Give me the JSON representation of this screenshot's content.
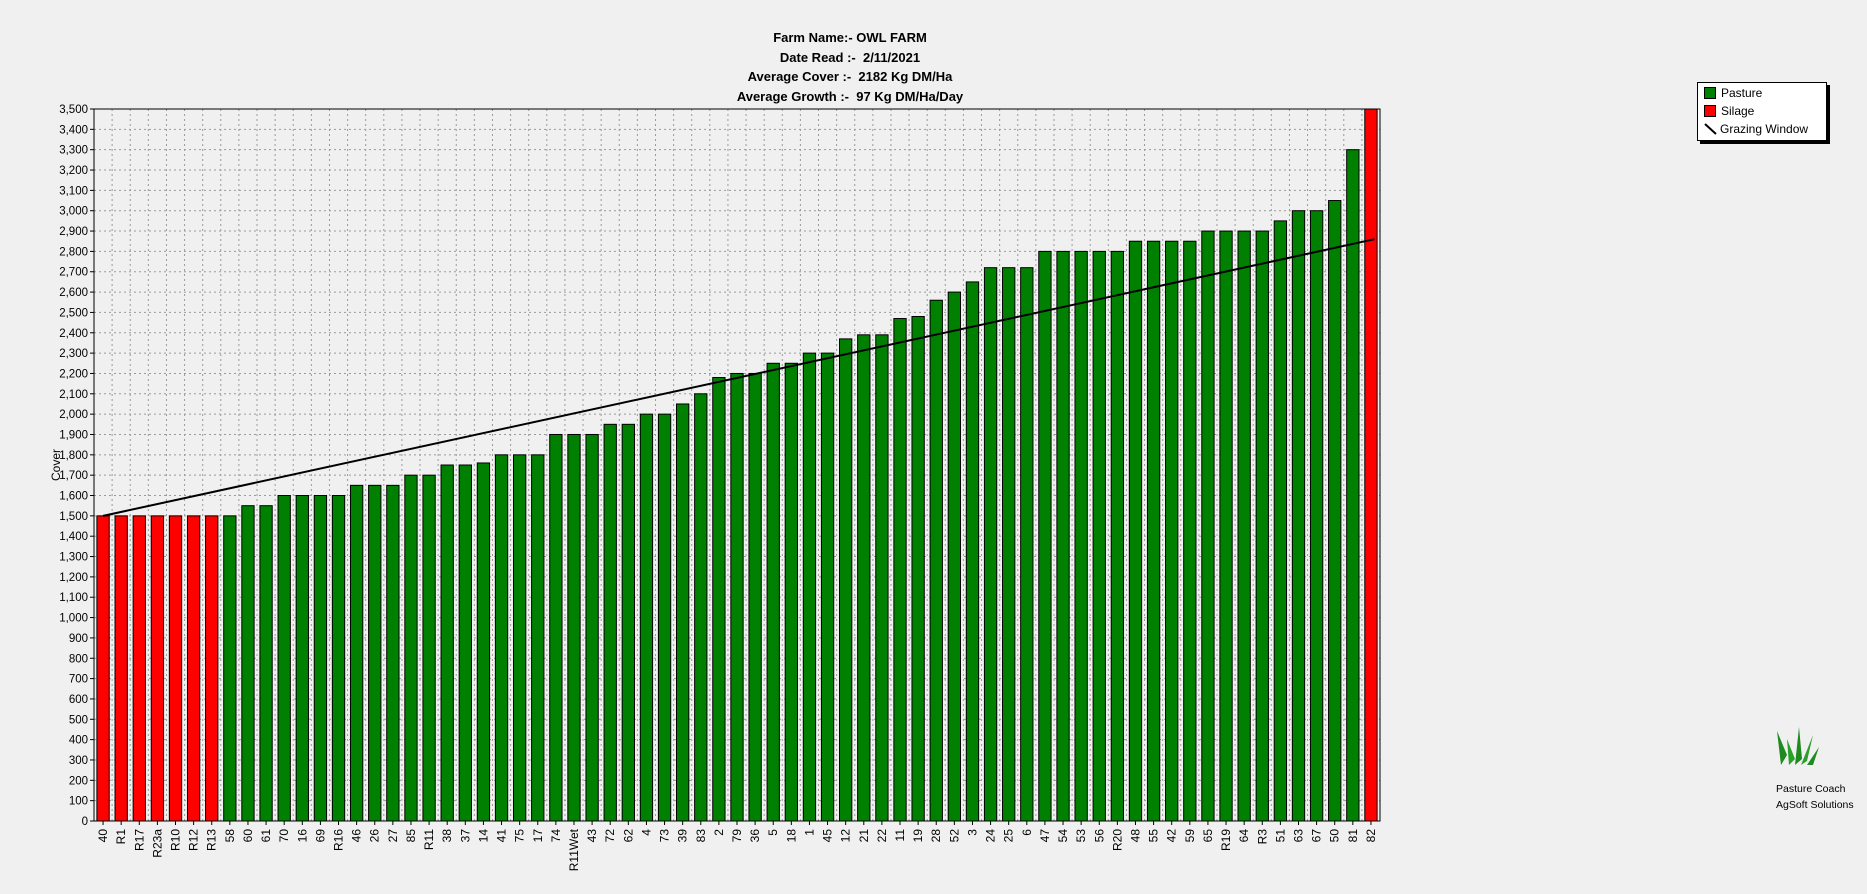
{
  "title_lines": [
    "Farm Name:- OWL FARM",
    "Date Read :-  2/11/2021",
    "Average Cover :-  2182 Kg DM/Ha",
    "Average Growth :-  97 Kg DM/Ha/Day"
  ],
  "legend": [
    {
      "label": "Pasture",
      "color": "#008000",
      "kind": "box"
    },
    {
      "label": "Silage",
      "color": "#ff0000",
      "kind": "box"
    },
    {
      "label": "Grazing Window",
      "color": "#000000",
      "kind": "line"
    }
  ],
  "branding": {
    "line1": "Pasture Coach",
    "line2": "AgSoft Solutions"
  },
  "chart_data": {
    "type": "bar",
    "ylabel": "Cover",
    "xlabel": "",
    "ylim": [
      0,
      3500
    ],
    "ytick_step": 100,
    "grid": true,
    "legend_position": "top-right",
    "colors": {
      "Pasture": "#008000",
      "Silage": "#ff0000",
      "Grazing Window": "#000000"
    },
    "categories": [
      "40",
      "R1",
      "R17",
      "R23a",
      "R10",
      "R12",
      "R13",
      "58",
      "60",
      "61",
      "70",
      "16",
      "69",
      "R16",
      "46",
      "26",
      "27",
      "85",
      "R11",
      "38",
      "37",
      "14",
      "41",
      "75",
      "17",
      "74",
      "R11Wet",
      "43",
      "72",
      "62",
      "4",
      "73",
      "39",
      "83",
      "2",
      "79",
      "36",
      "5",
      "18",
      "1",
      "45",
      "12",
      "21",
      "22",
      "11",
      "19",
      "28",
      "52",
      "3",
      "24",
      "25",
      "6",
      "47",
      "54",
      "53",
      "56",
      "R20",
      "48",
      "55",
      "42",
      "59",
      "65",
      "R19",
      "64",
      "R3",
      "51",
      "63",
      "67",
      "50",
      "81",
      "82"
    ],
    "values": [
      1500,
      1500,
      1500,
      1500,
      1500,
      1500,
      1500,
      1500,
      1550,
      1550,
      1600,
      1600,
      1600,
      1600,
      1650,
      1650,
      1650,
      1700,
      1700,
      1750,
      1750,
      1760,
      1800,
      1800,
      1800,
      1900,
      1900,
      1900,
      1950,
      1950,
      2000,
      2000,
      2050,
      2100,
      2180,
      2200,
      2200,
      2250,
      2250,
      2300,
      2300,
      2370,
      2390,
      2390,
      2470,
      2480,
      2560,
      2600,
      2650,
      2720,
      2720,
      2720,
      2800,
      2800,
      2800,
      2800,
      2800,
      2850,
      2850,
      2850,
      2850,
      2900,
      2900,
      2900,
      2900,
      2950,
      3000,
      3000,
      3050,
      3300,
      3500
    ],
    "types": [
      "Silage",
      "Silage",
      "Silage",
      "Silage",
      "Silage",
      "Silage",
      "Silage",
      "Pasture",
      "Pasture",
      "Pasture",
      "Pasture",
      "Pasture",
      "Pasture",
      "Pasture",
      "Pasture",
      "Pasture",
      "Pasture",
      "Pasture",
      "Pasture",
      "Pasture",
      "Pasture",
      "Pasture",
      "Pasture",
      "Pasture",
      "Pasture",
      "Pasture",
      "Pasture",
      "Pasture",
      "Pasture",
      "Pasture",
      "Pasture",
      "Pasture",
      "Pasture",
      "Pasture",
      "Pasture",
      "Pasture",
      "Pasture",
      "Pasture",
      "Pasture",
      "Pasture",
      "Pasture",
      "Pasture",
      "Pasture",
      "Pasture",
      "Pasture",
      "Pasture",
      "Pasture",
      "Pasture",
      "Pasture",
      "Pasture",
      "Pasture",
      "Pasture",
      "Pasture",
      "Pasture",
      "Pasture",
      "Pasture",
      "Pasture",
      "Pasture",
      "Pasture",
      "Pasture",
      "Pasture",
      "Pasture",
      "Pasture",
      "Pasture",
      "Pasture",
      "Pasture",
      "Pasture",
      "Pasture",
      "Pasture",
      "Pasture",
      "Silage"
    ],
    "grazing_window": {
      "start": 1500,
      "end": 2860
    }
  }
}
